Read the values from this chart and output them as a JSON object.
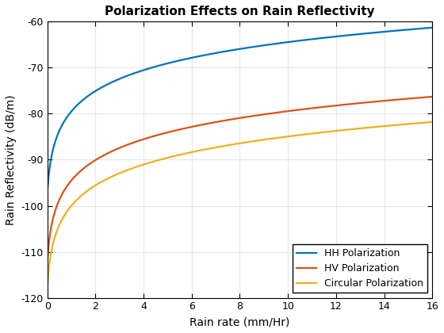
{
  "title": "Polarization Effects on Rain Reflectivity",
  "xlabel": "Rain rate (mm/Hr)",
  "ylabel": "Rain Reflectivity (dB/m)",
  "xlim": [
    0,
    16
  ],
  "ylim": [
    -120,
    -60
  ],
  "xticks": [
    0,
    2,
    4,
    6,
    8,
    10,
    12,
    14,
    16
  ],
  "yticks": [
    -120,
    -110,
    -100,
    -90,
    -80,
    -70,
    -60
  ],
  "curves": [
    {
      "label": "HH Polarization",
      "color": "#0072BD",
      "a": 15.5,
      "b": -80.0,
      "c": 0.08
    },
    {
      "label": "HV Polarization",
      "color": "#D95319",
      "a": 15.5,
      "b": -95.0,
      "c": 0.08
    },
    {
      "label": "Circular Polarization",
      "color": "#EDB120",
      "a": 15.5,
      "b": -100.5,
      "c": 0.08
    }
  ],
  "legend_loc": "lower right",
  "grid_color": "#E6E6E6",
  "background_color": "#FFFFFF",
  "title_fontsize": 11,
  "label_fontsize": 10,
  "tick_fontsize": 9,
  "line_width": 1.6
}
